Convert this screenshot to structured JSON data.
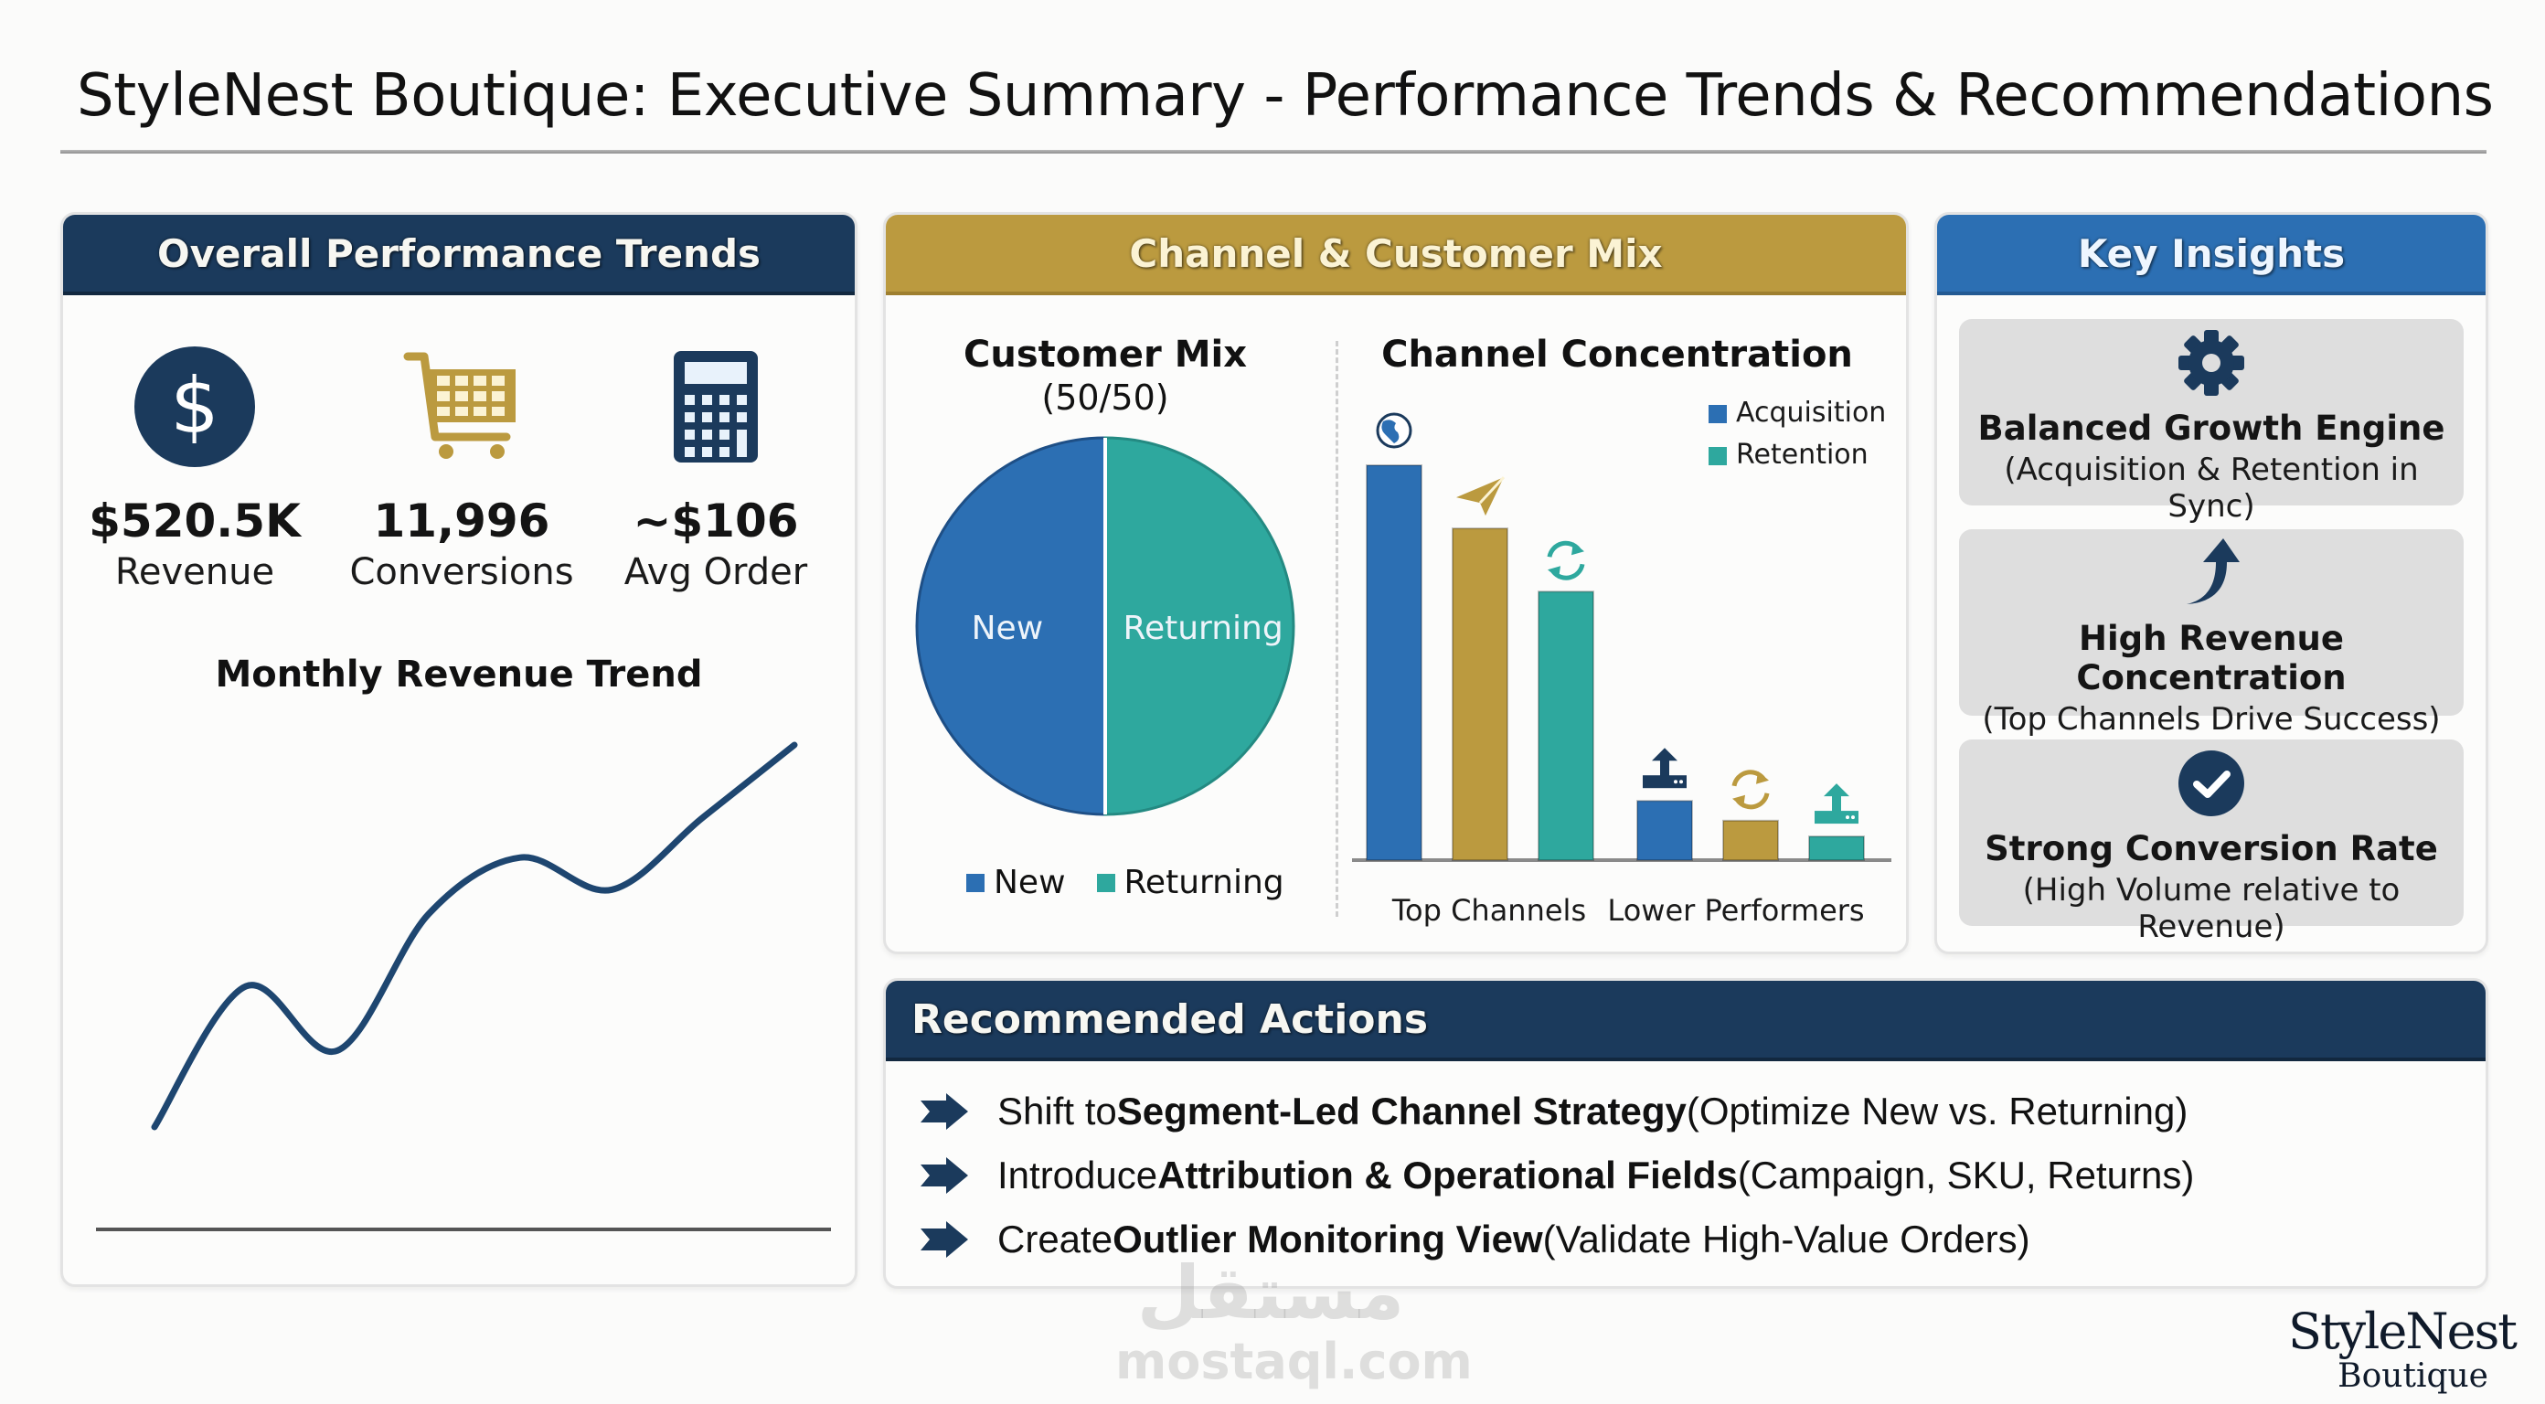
{
  "header": {
    "title": "StyleNest Boutique: Executive Summary - Performance Trends & Recommendations"
  },
  "overall": {
    "title": "Overall Performance Trends",
    "kpis": [
      {
        "icon": "dollar-icon",
        "value": "$520.5K",
        "label": "Revenue"
      },
      {
        "icon": "shopping-cart-icon",
        "value": "11,996",
        "label": "Conversions"
      },
      {
        "icon": "calculator-icon",
        "value": "~$106",
        "label": "Avg Order"
      }
    ],
    "trend_title": "Monthly Revenue Trend"
  },
  "mix": {
    "title": "Channel & Customer Mix",
    "customer_mix_title": "Customer Mix",
    "customer_mix_subtitle": "(50/50)",
    "channel_title": "Channel Concentration"
  },
  "insights": {
    "title": "Key Insights",
    "items": [
      {
        "icon": "gear-icon",
        "title": "Balanced Growth Engine",
        "subtitle": "(Acquisition & Retention in Sync)"
      },
      {
        "icon": "curved-arrow-up-icon",
        "title": "High Revenue Concentration",
        "subtitle": "(Top Channels Drive Success)"
      },
      {
        "icon": "checkmark-circle-icon",
        "title": "Strong Conversion Rate",
        "subtitle": "(High Volume relative to Revenue)"
      }
    ]
  },
  "actions": {
    "title": "Recommended Actions",
    "items": [
      {
        "prefix": "Shift to ",
        "bold": "Segment-Led Channel Strategy",
        "suffix": " (Optimize New vs. Returning)"
      },
      {
        "prefix": "Introduce ",
        "bold": "Attribution & Operational Fields",
        "suffix": " (Campaign, SKU, Returns)"
      },
      {
        "prefix": "Create ",
        "bold": "Outlier Monitoring View",
        "suffix": " (Validate High-Value Orders)"
      }
    ]
  },
  "logo": {
    "main": "StyleNest",
    "sub": "Boutique"
  },
  "watermark": {
    "arabic": "مستقل",
    "latin": "mostaql.com"
  },
  "colors": {
    "navy": "#1b3a5c",
    "gold": "#bb9a3f",
    "blue": "#2c6fb3",
    "teal": "#2ea89e",
    "acquisition": "#2c6fb3",
    "retention": "#2ea89e"
  },
  "chart_data": [
    {
      "type": "line",
      "title": "Monthly Revenue Trend",
      "xlabel": "",
      "ylabel": "",
      "note": "Unlabeled axes; values are relative (0-100) estimates of the curve shape",
      "x": [
        1,
        2,
        3,
        4,
        5,
        6,
        7,
        8
      ],
      "values": [
        5,
        40,
        24,
        58,
        72,
        64,
        82,
        100
      ],
      "ylim": [
        0,
        100
      ],
      "grid": false
    },
    {
      "type": "pie",
      "title": "Customer Mix",
      "subtitle": "(50/50)",
      "categories": [
        "New",
        "Returning"
      ],
      "values": [
        50,
        50
      ],
      "colors": [
        "#2c6fb3",
        "#2ea89e"
      ],
      "legend": "bottom"
    },
    {
      "type": "bar",
      "title": "Channel Concentration",
      "groups": [
        "Top Channels",
        "Lower Performers"
      ],
      "note": "No axis ticks shown; heights are relative estimates (0-100)",
      "bars": [
        {
          "group": "Top Channels",
          "icon": "globe-icon",
          "color": "#2c6fb3",
          "value": 100
        },
        {
          "group": "Top Channels",
          "icon": "paper-plane-icon",
          "color": "#bb9a3f",
          "value": 84
        },
        {
          "group": "Top Channels",
          "icon": "refresh-icon",
          "color": "#2ea89e",
          "value": 68
        },
        {
          "group": "Lower Performers",
          "icon": "upload-icon",
          "color": "#2c6fb3",
          "value": 15
        },
        {
          "group": "Lower Performers",
          "icon": "refresh-icon",
          "color": "#bb9a3f",
          "value": 10
        },
        {
          "group": "Lower Performers",
          "icon": "upload-icon",
          "color": "#2ea89e",
          "value": 6
        }
      ],
      "legend": {
        "position": "top-right",
        "entries": [
          {
            "label": "Acquisition",
            "color": "#2c6fb3"
          },
          {
            "label": "Retention",
            "color": "#2ea89e"
          }
        ]
      },
      "ylim": [
        0,
        100
      ]
    }
  ]
}
